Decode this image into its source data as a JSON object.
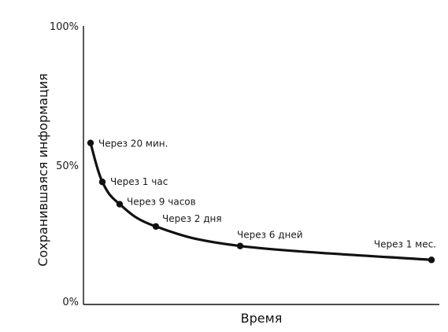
{
  "chart_data": {
    "type": "line",
    "title": "",
    "xlabel": "Время",
    "ylabel": "Сохранившаяся информация",
    "yticks": [
      "0%",
      "50%",
      "100%"
    ],
    "ylim": [
      0,
      100
    ],
    "grid": false,
    "series": [
      {
        "points": [
          {
            "label": "Через 20 мин.",
            "y": 58
          },
          {
            "label": "Через 1 час",
            "y": 44
          },
          {
            "label": "Через 9 часов",
            "y": 36
          },
          {
            "label": "Через 2 дня",
            "y": 28
          },
          {
            "label": "Через 6 дней",
            "y": 21
          },
          {
            "label": "Через 1 мес.",
            "y": 16
          }
        ]
      }
    ],
    "colors": {
      "line": "#111111",
      "axis": "#111111"
    }
  }
}
